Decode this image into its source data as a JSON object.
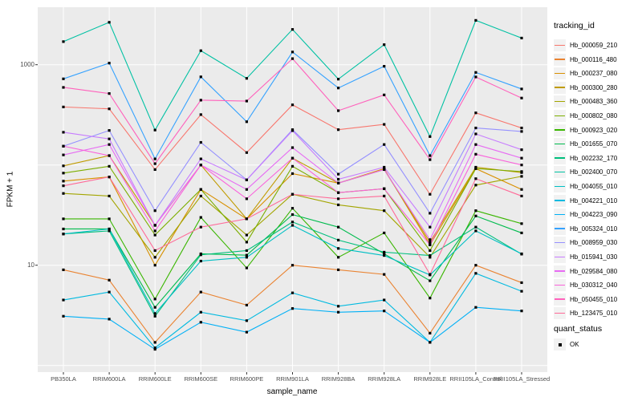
{
  "figure": {
    "background": "#FFFFFF",
    "panel_background": "#EBEBEB",
    "gridline_color": "#FFFFFF",
    "axis_text_color": "#4D4D4D",
    "point_color": "#000000"
  },
  "chart_data": {
    "type": "line",
    "title": "",
    "xlabel": "sample_name",
    "ylabel": "FPKM + 1",
    "y_scale": "log10",
    "ylim": [
      0.9,
      3700
    ],
    "grid": true,
    "legend_position": "right",
    "x_categories": [
      "PB350LA",
      "RRIM600LA",
      "RRIM600LE",
      "RRIM600SE",
      "RRIM600PE",
      "RRIM901LA",
      "RRIM928BA",
      "RRIM928LA",
      "RRIM928LE",
      "RRII105LA_Control",
      "RRII105LA_Stressed"
    ],
    "y_ticks": [
      {
        "label": "1000",
        "value": 1000
      },
      {
        "label": "10",
        "value": 10
      }
    ],
    "y_gridline_values": [
      1,
      10,
      100,
      1000
    ],
    "legend_title": "tracking_id",
    "legend2_title": "quant_status",
    "legend2_items": [
      {
        "label": "OK",
        "marker": "black-square"
      }
    ],
    "point_marker": "black-square",
    "series": [
      {
        "name": "Hb_000059_210",
        "color": "#F8766D",
        "values": [
          379,
          363,
          90,
          318,
          133,
          398,
          225,
          254,
          51,
          331,
          234
        ]
      },
      {
        "name": "Hb_000116_480",
        "color": "#EA8331",
        "values": [
          9,
          7.1,
          1.7,
          5.4,
          4,
          10,
          9,
          8.1,
          2.1,
          10,
          6.7
        ]
      },
      {
        "name": "Hb_000237_080",
        "color": "#D89000",
        "values": [
          69,
          76,
          10,
          57,
          29,
          82,
          66,
          92,
          16,
          92,
          57
        ]
      },
      {
        "name": "Hb_000300_280",
        "color": "#C09B00",
        "values": [
          98,
          124,
          25,
          100,
          29,
          117,
          66,
          90,
          17,
          95,
          84
        ]
      },
      {
        "name": "Hb_000483_360",
        "color": "#A3A500",
        "values": [
          52,
          49,
          12,
          49,
          20,
          51,
          40,
          35,
          12,
          63,
          77
        ]
      },
      {
        "name": "Hb_000802_080",
        "color": "#7CAE00",
        "values": [
          83,
          97,
          20,
          57,
          17,
          97,
          53,
          58,
          14,
          92,
          86
        ]
      },
      {
        "name": "Hb_000923_020",
        "color": "#39B600",
        "values": [
          29,
          29,
          4.6,
          30,
          9.4,
          37,
          12,
          21,
          4.7,
          35,
          26
        ]
      },
      {
        "name": "Hb_001655_070",
        "color": "#00BB4E",
        "values": [
          23,
          23,
          3.8,
          13,
          12.6,
          32,
          24,
          13,
          7,
          31,
          21
        ]
      },
      {
        "name": "Hb_002232_170",
        "color": "#00BF7D",
        "values": [
          20.5,
          22,
          3.1,
          12.7,
          14,
          27,
          17.8,
          13.5,
          12.5,
          24,
          12.9
        ]
      },
      {
        "name": "Hb_002400_070",
        "color": "#00C1A3",
        "values": [
          1700,
          2650,
          223,
          1380,
          731,
          2250,
          718,
          1585,
          192,
          2770,
          1845
        ]
      },
      {
        "name": "Hb_004055_010",
        "color": "#00BFC4",
        "values": [
          20.5,
          23,
          3.3,
          11,
          12,
          25,
          14.7,
          12.5,
          8,
          22,
          13
        ]
      },
      {
        "name": "Hb_004221_010",
        "color": "#00BAE0",
        "values": [
          4.5,
          5.4,
          1.5,
          3.4,
          2.8,
          5.3,
          3.9,
          4.5,
          1.7,
          8.3,
          5.5
        ]
      },
      {
        "name": "Hb_004223_090",
        "color": "#00B0F6",
        "values": [
          3.1,
          2.9,
          1.45,
          2.7,
          2.15,
          3.7,
          3.4,
          3.5,
          1.7,
          3.8,
          3.5
        ]
      },
      {
        "name": "Hb_005324_010",
        "color": "#35A2FF",
        "values": [
          723,
          1038,
          115,
          757,
          270,
          1340,
          586,
          965,
          124,
          838,
          573
        ]
      },
      {
        "name": "Hb_008959_030",
        "color": "#9590FF",
        "values": [
          154,
          221,
          35,
          168,
          71,
          225,
          81,
          160,
          33,
          234,
          216
        ]
      },
      {
        "name": "Hb_015941_030",
        "color": "#C77CFF",
        "values": [
          212,
          182,
          25,
          115,
          71,
          220,
          72,
          95,
          24,
          204,
          142
        ]
      },
      {
        "name": "Hb_029584_080",
        "color": "#E76BF3",
        "values": [
          126,
          160,
          25,
          100,
          57,
          149,
          66,
          90,
          18,
          160,
          117
        ]
      },
      {
        "name": "Hb_030312_040",
        "color": "#FA62DB",
        "values": [
          154,
          124,
          22,
          100,
          46,
          117,
          53,
          58,
          16,
          128,
          100
        ]
      },
      {
        "name": "Hb_050455_010",
        "color": "#FF62BC",
        "values": [
          594,
          516,
          103,
          443,
          434,
          1150,
          348,
          500,
          113,
          755,
          465
        ]
      },
      {
        "name": "Hb_123475_010",
        "color": "#FF6A98",
        "values": [
          62,
          76,
          14,
          24,
          29,
          51,
          46,
          49,
          8.1,
          73,
          49
        ]
      }
    ]
  }
}
